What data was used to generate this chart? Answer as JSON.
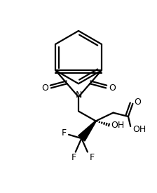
{
  "bg_color": "#ffffff",
  "line_color": "#000000",
  "lw": 1.6,
  "figsize": [
    2.24,
    2.75
  ],
  "dpi": 100,
  "xlim": [
    0.0,
    1.0
  ],
  "ylim": [
    0.0,
    1.0
  ]
}
